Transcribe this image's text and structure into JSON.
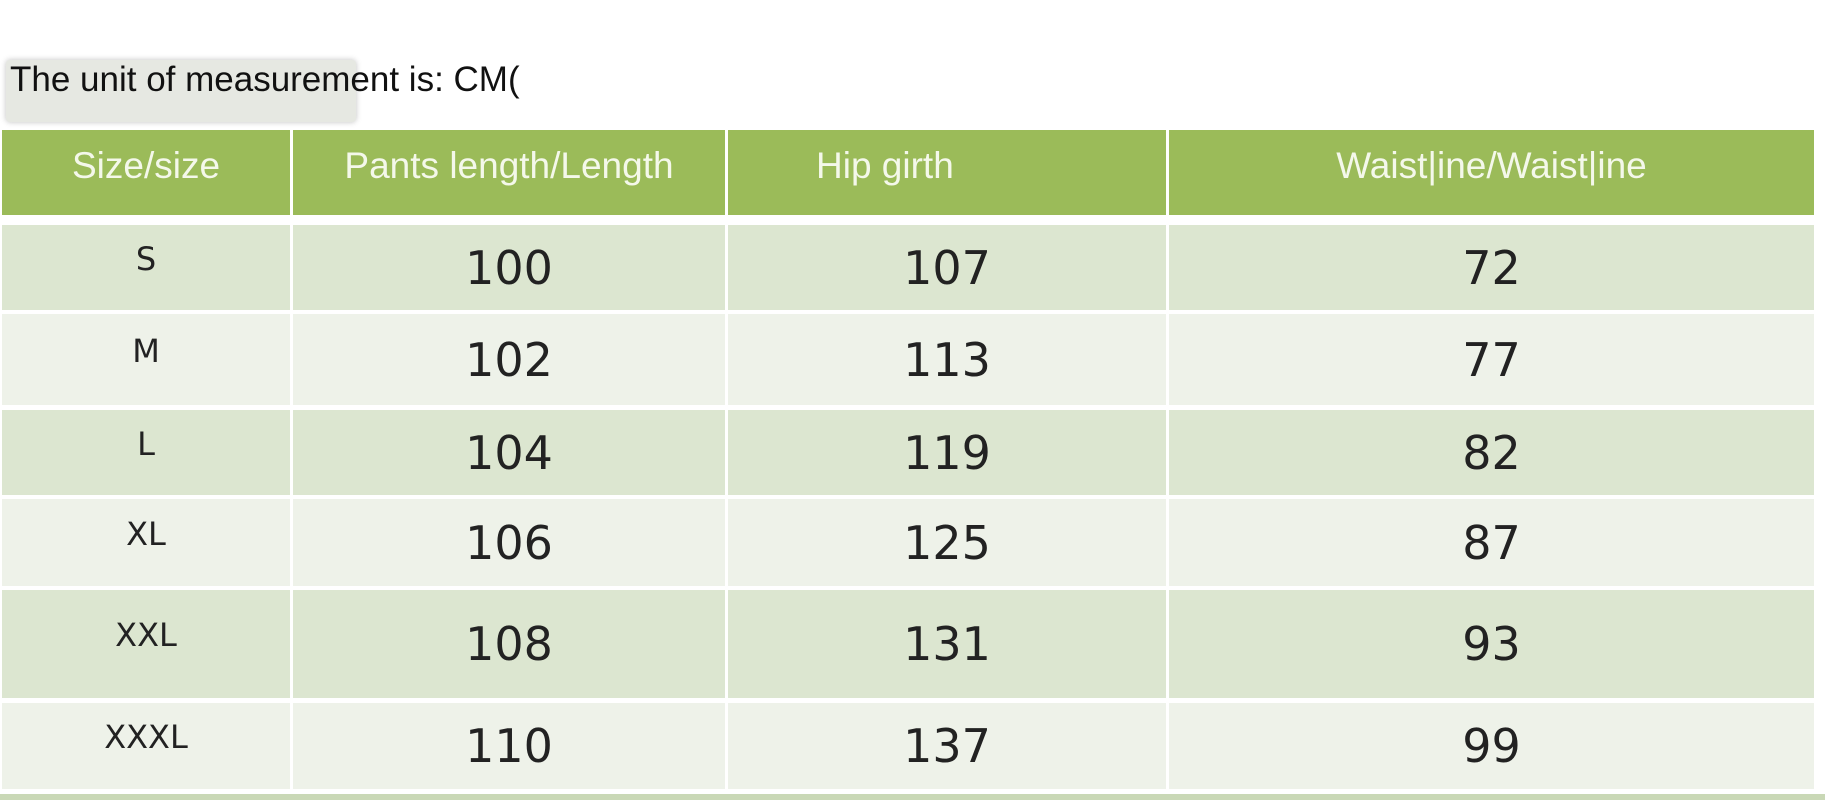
{
  "unit_label": "The unit of measurement is: CM(",
  "colors": {
    "header": "#9bbb59",
    "row_odd": "#dce6d0",
    "row_even": "#eef2e9"
  },
  "table": {
    "headers": [
      "Size/size",
      "Pants length/Length",
      "Hip girth",
      "Waist|ine/Waist|ine"
    ],
    "rows": [
      [
        "S",
        "100",
        "107",
        "72"
      ],
      [
        "M",
        "102",
        "113",
        "77"
      ],
      [
        "L",
        "104",
        "119",
        "82"
      ],
      [
        "XL",
        "106",
        "125",
        "87"
      ],
      [
        "XXL",
        "108",
        "131",
        "93"
      ],
      [
        "XXXL",
        "110",
        "137",
        "99"
      ]
    ]
  }
}
